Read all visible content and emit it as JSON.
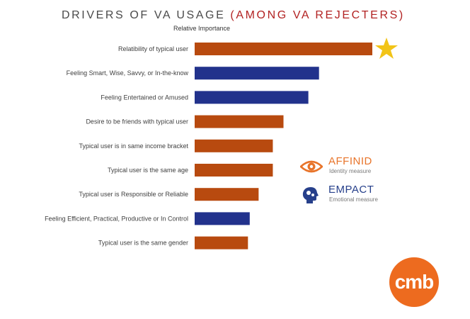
{
  "chart_data": {
    "type": "bar",
    "orientation": "horizontal",
    "title_main": "DRIVERS OF VA USAGE",
    "title_accent": "(AMONG VA REJECTERS)",
    "subtitle": "Relative Importance",
    "xlabel": "",
    "ylabel": "",
    "xlim": [
      0,
      100
    ],
    "grid": false,
    "categories": [
      "Relatibility of typical user",
      "Feeling Smart, Wise, Savvy, or In-the-know",
      "Feeling Entertained or Amused",
      "Desire to be friends with typical user",
      "Typical user is in same income bracket",
      "Typical user is the same age",
      "Typical user is Responsible or Reliable",
      "Feeling Efficient, Practical, Productive or In Control",
      "Typical user is the same gender"
    ],
    "values": [
      100,
      70,
      64,
      50,
      44,
      44,
      36,
      31,
      30
    ],
    "value_scale": "relative importance index, top driver = 100 (estimated)",
    "bar_measure": [
      "Identity",
      "Emotional",
      "Emotional",
      "Identity",
      "Identity",
      "Identity",
      "Identity",
      "Emotional",
      "Identity"
    ],
    "colors": {
      "Identity": "#b84a0f",
      "Emotional": "#22328c"
    },
    "highlight": {
      "category_index": 0,
      "marker": "star",
      "color": "#f2c418"
    }
  },
  "legend": {
    "affinid": {
      "name": "AFFINID",
      "desc": "Identity measure",
      "icon": "eye-icon",
      "color": "#e8742a"
    },
    "empact": {
      "name": "EMPACT",
      "desc": "Emotional measure",
      "icon": "head-gears-icon",
      "color": "#27408b"
    }
  },
  "logo": {
    "text": "cmb",
    "color": "#ed6b1f"
  }
}
